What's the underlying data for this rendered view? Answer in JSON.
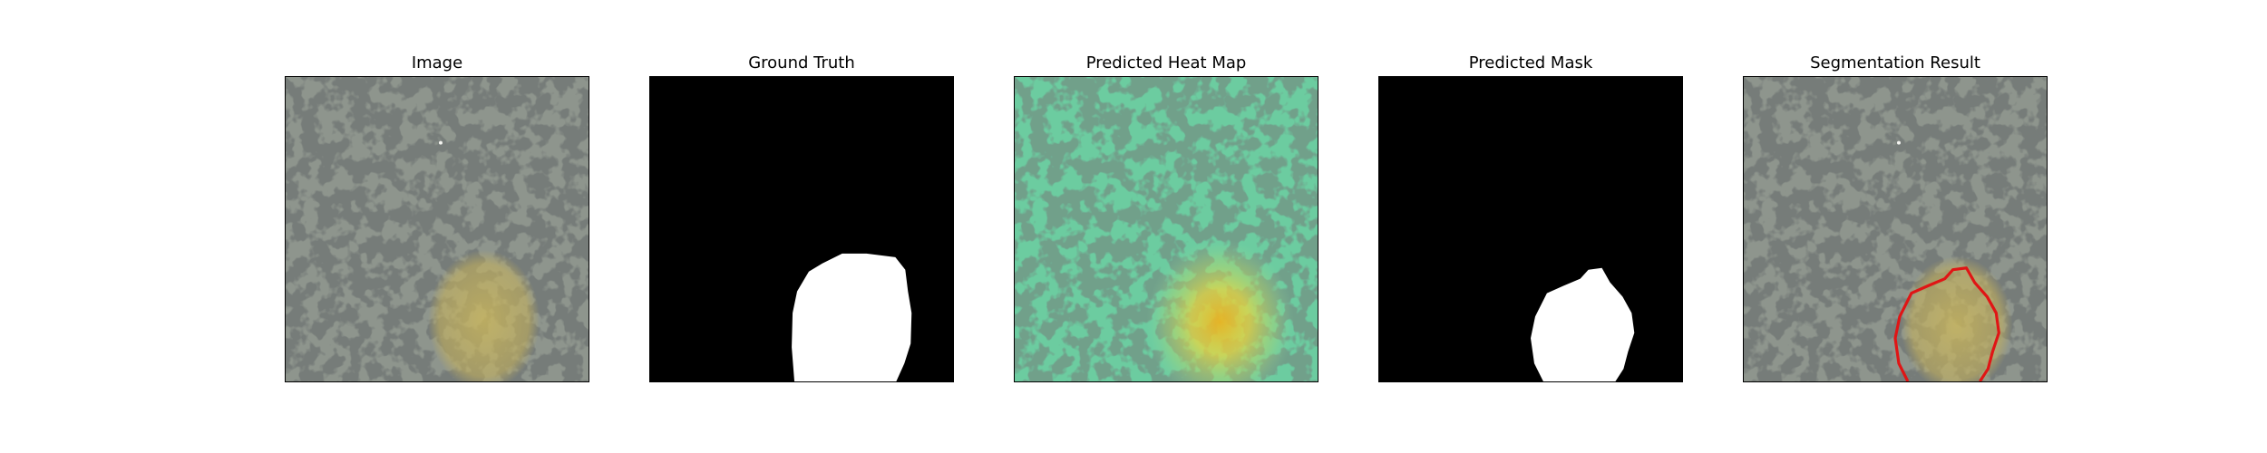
{
  "panels": [
    {
      "id": "image",
      "title": "Image"
    },
    {
      "id": "ground-truth",
      "title": "Ground Truth"
    },
    {
      "id": "heatmap",
      "title": "Predicted Heat Map"
    },
    {
      "id": "pred-mask",
      "title": "Predicted Mask"
    },
    {
      "id": "seg-result",
      "title": "Segmentation Result"
    }
  ],
  "colors": {
    "texture_bg": "#8e958d",
    "texture_spot": "#2f3330",
    "lesion_fill": "#c9b45a",
    "heatmap_tint": "#5fd3a0",
    "heatmap_hot": "#ffd21a",
    "mask_bg": "#000000",
    "mask_fg": "#ffffff",
    "contour": "#e01515"
  }
}
